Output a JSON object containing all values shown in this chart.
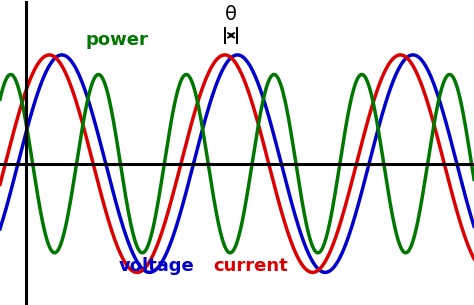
{
  "background_color": "#ffffff",
  "voltage_color": "#0000cc",
  "current_color": "#dd0000",
  "power_color": "#007700",
  "voltage_label": "voltage",
  "current_label": "current",
  "power_label": "power",
  "theta_label": "θ",
  "linewidth": 2.5,
  "figsize": [
    4.74,
    3.05
  ],
  "dpi": 100,
  "xlim": [
    -0.15,
    2.55
  ],
  "ylim": [
    -1.3,
    1.5
  ],
  "voltage_phase": 0.3,
  "current_phase": -0.15,
  "power_phase": 0.07,
  "power_amplitude": 0.82,
  "num_cycles": 2.5,
  "theta_shift": 0.45
}
